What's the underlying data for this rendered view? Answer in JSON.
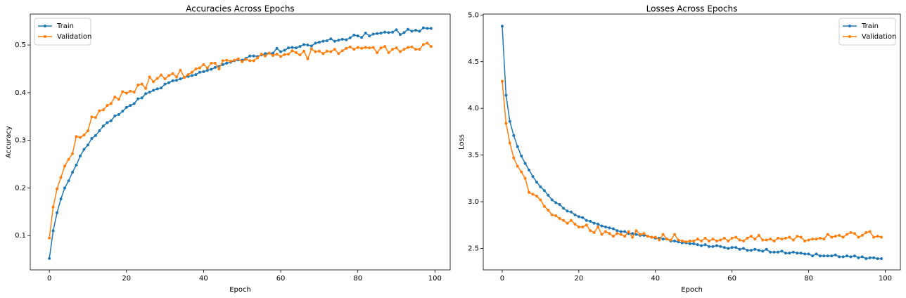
{
  "chart_data": [
    {
      "type": "line",
      "title": "Accuracies Across Epochs",
      "xlabel": "Epoch",
      "ylabel": "Accuracy",
      "x": [
        0,
        1,
        2,
        3,
        4,
        5,
        6,
        7,
        8,
        9,
        10,
        11,
        12,
        13,
        14,
        15,
        16,
        17,
        18,
        19,
        20,
        21,
        22,
        23,
        24,
        25,
        26,
        27,
        28,
        29,
        30,
        31,
        32,
        33,
        34,
        35,
        36,
        37,
        38,
        39,
        40,
        41,
        42,
        43,
        44,
        45,
        46,
        47,
        48,
        49,
        50,
        51,
        52,
        53,
        54,
        55,
        56,
        57,
        58,
        59,
        60,
        61,
        62,
        63,
        64,
        65,
        66,
        67,
        68,
        69,
        70,
        71,
        72,
        73,
        74,
        75,
        76,
        77,
        78,
        79,
        80,
        81,
        82,
        83,
        84,
        85,
        86,
        87,
        88,
        89,
        90,
        91,
        92,
        93,
        94,
        95,
        96,
        97,
        98,
        99
      ],
      "series": [
        {
          "name": "Train",
          "color": "#1f77b4",
          "values": [
            0.052,
            0.11,
            0.148,
            0.177,
            0.2,
            0.215,
            0.233,
            0.248,
            0.267,
            0.281,
            0.29,
            0.304,
            0.31,
            0.32,
            0.33,
            0.337,
            0.341,
            0.351,
            0.354,
            0.361,
            0.369,
            0.373,
            0.377,
            0.387,
            0.389,
            0.398,
            0.401,
            0.405,
            0.408,
            0.41,
            0.418,
            0.421,
            0.425,
            0.426,
            0.429,
            0.432,
            0.434,
            0.436,
            0.438,
            0.443,
            0.444,
            0.447,
            0.449,
            0.453,
            0.455,
            0.459,
            0.462,
            0.464,
            0.467,
            0.469,
            0.468,
            0.472,
            0.477,
            0.477,
            0.476,
            0.479,
            0.482,
            0.483,
            0.483,
            0.493,
            0.486,
            0.489,
            0.494,
            0.495,
            0.494,
            0.497,
            0.501,
            0.5,
            0.498,
            0.504,
            0.506,
            0.508,
            0.509,
            0.513,
            0.508,
            0.51,
            0.512,
            0.511,
            0.515,
            0.521,
            0.519,
            0.516,
            0.525,
            0.519,
            0.523,
            0.524,
            0.525,
            0.527,
            0.526,
            0.527,
            0.532,
            0.522,
            0.526,
            0.533,
            0.529,
            0.531,
            0.529,
            0.536,
            0.535,
            0.535
          ]
        },
        {
          "name": "Validation",
          "color": "#ff7f0e",
          "values": [
            0.095,
            0.16,
            0.198,
            0.222,
            0.246,
            0.26,
            0.272,
            0.308,
            0.306,
            0.311,
            0.32,
            0.349,
            0.348,
            0.362,
            0.364,
            0.373,
            0.377,
            0.391,
            0.386,
            0.402,
            0.399,
            0.403,
            0.401,
            0.416,
            0.418,
            0.409,
            0.433,
            0.423,
            0.43,
            0.437,
            0.429,
            0.436,
            0.44,
            0.433,
            0.447,
            0.432,
            0.438,
            0.443,
            0.45,
            0.452,
            0.459,
            0.452,
            0.462,
            0.462,
            0.45,
            0.467,
            0.468,
            0.466,
            0.468,
            0.471,
            0.465,
            0.47,
            0.467,
            0.467,
            0.473,
            0.481,
            0.477,
            0.483,
            0.478,
            0.481,
            0.476,
            0.48,
            0.481,
            0.488,
            0.484,
            0.479,
            0.487,
            0.471,
            0.492,
            0.486,
            0.487,
            0.482,
            0.487,
            0.486,
            0.491,
            0.482,
            0.488,
            0.493,
            0.496,
            0.491,
            0.495,
            0.493,
            0.495,
            0.494,
            0.495,
            0.484,
            0.494,
            0.497,
            0.484,
            0.491,
            0.494,
            0.486,
            0.491,
            0.495,
            0.496,
            0.491,
            0.491,
            0.501,
            0.504,
            0.497
          ]
        }
      ],
      "xlim": [
        -4.95,
        103.95
      ],
      "ylim": [
        0.028,
        0.565
      ],
      "xticks": [
        0,
        20,
        40,
        60,
        80,
        100
      ],
      "yticks": [
        0.1,
        0.2,
        0.3,
        0.4,
        0.5
      ],
      "legend": "upper left",
      "grid": false
    },
    {
      "type": "line",
      "title": "Losses Across Epochs",
      "xlabel": "Epoch",
      "ylabel": "Loss",
      "x": [
        0,
        1,
        2,
        3,
        4,
        5,
        6,
        7,
        8,
        9,
        10,
        11,
        12,
        13,
        14,
        15,
        16,
        17,
        18,
        19,
        20,
        21,
        22,
        23,
        24,
        25,
        26,
        27,
        28,
        29,
        30,
        31,
        32,
        33,
        34,
        35,
        36,
        37,
        38,
        39,
        40,
        41,
        42,
        43,
        44,
        45,
        46,
        47,
        48,
        49,
        50,
        51,
        52,
        53,
        54,
        55,
        56,
        57,
        58,
        59,
        60,
        61,
        62,
        63,
        64,
        65,
        66,
        67,
        68,
        69,
        70,
        71,
        72,
        73,
        74,
        75,
        76,
        77,
        78,
        79,
        80,
        81,
        82,
        83,
        84,
        85,
        86,
        87,
        88,
        89,
        90,
        91,
        92,
        93,
        94,
        95,
        96,
        97,
        98,
        99
      ],
      "series": [
        {
          "name": "Train",
          "color": "#1f77b4",
          "values": [
            4.88,
            4.14,
            3.86,
            3.71,
            3.59,
            3.49,
            3.41,
            3.34,
            3.27,
            3.21,
            3.16,
            3.12,
            3.07,
            3.02,
            2.99,
            2.97,
            2.93,
            2.9,
            2.89,
            2.86,
            2.84,
            2.83,
            2.8,
            2.79,
            2.77,
            2.76,
            2.74,
            2.73,
            2.72,
            2.71,
            2.69,
            2.68,
            2.68,
            2.66,
            2.66,
            2.65,
            2.64,
            2.64,
            2.63,
            2.62,
            2.61,
            2.61,
            2.6,
            2.6,
            2.58,
            2.58,
            2.57,
            2.56,
            2.56,
            2.55,
            2.55,
            2.54,
            2.53,
            2.54,
            2.52,
            2.52,
            2.53,
            2.52,
            2.51,
            2.5,
            2.51,
            2.51,
            2.49,
            2.5,
            2.48,
            2.48,
            2.49,
            2.48,
            2.47,
            2.49,
            2.46,
            2.46,
            2.46,
            2.47,
            2.45,
            2.45,
            2.46,
            2.45,
            2.45,
            2.44,
            2.44,
            2.42,
            2.44,
            2.42,
            2.42,
            2.42,
            2.42,
            2.43,
            2.41,
            2.41,
            2.42,
            2.41,
            2.42,
            2.4,
            2.41,
            2.39,
            2.4,
            2.4,
            2.39,
            2.39
          ]
        },
        {
          "name": "Validation",
          "color": "#ff7f0e",
          "values": [
            4.29,
            3.84,
            3.63,
            3.47,
            3.38,
            3.32,
            3.25,
            3.1,
            3.08,
            3.06,
            3.02,
            2.95,
            2.91,
            2.86,
            2.85,
            2.82,
            2.8,
            2.77,
            2.8,
            2.76,
            2.73,
            2.73,
            2.75,
            2.69,
            2.67,
            2.73,
            2.65,
            2.68,
            2.66,
            2.63,
            2.66,
            2.65,
            2.63,
            2.68,
            2.62,
            2.69,
            2.65,
            2.66,
            2.63,
            2.62,
            2.62,
            2.59,
            2.65,
            2.6,
            2.59,
            2.65,
            2.59,
            2.58,
            2.57,
            2.58,
            2.58,
            2.6,
            2.58,
            2.61,
            2.58,
            2.6,
            2.58,
            2.59,
            2.61,
            2.58,
            2.61,
            2.62,
            2.59,
            2.58,
            2.61,
            2.63,
            2.6,
            2.64,
            2.59,
            2.59,
            2.6,
            2.58,
            2.61,
            2.6,
            2.61,
            2.62,
            2.59,
            2.63,
            2.62,
            2.58,
            2.59,
            2.6,
            2.6,
            2.61,
            2.6,
            2.65,
            2.62,
            2.63,
            2.64,
            2.62,
            2.65,
            2.67,
            2.66,
            2.62,
            2.64,
            2.67,
            2.68,
            2.62,
            2.63,
            2.62
          ]
        }
      ],
      "xlim": [
        -4.95,
        103.95
      ],
      "ylim": [
        2.27,
        5.01
      ],
      "xticks": [
        0,
        20,
        40,
        60,
        80,
        100
      ],
      "yticks": [
        2.5,
        {
          "value": 3,
          "label": "3.0"
        },
        3.5,
        {
          "value": 4,
          "label": "4.0"
        },
        4.5,
        {
          "value": 5,
          "label": "5.0"
        }
      ],
      "legend": "upper right",
      "grid": false
    }
  ]
}
